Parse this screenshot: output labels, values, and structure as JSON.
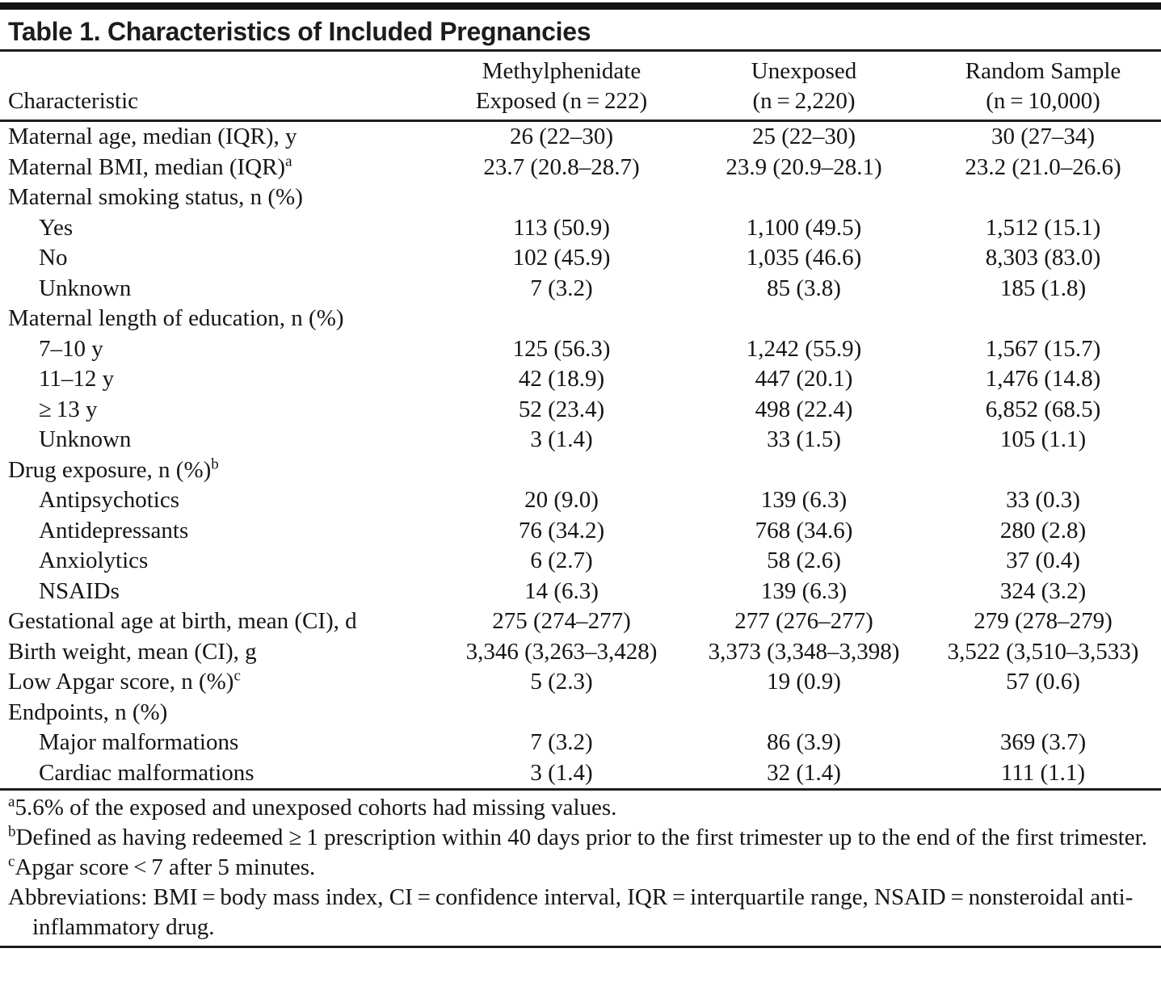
{
  "title": "Table 1. Characteristics of Included Pregnancies",
  "table": {
    "header": {
      "characteristic": "Characteristic",
      "exposed_line1": "Methylphenidate",
      "exposed_line2": "Exposed (n = 222)",
      "unexposed_line1": "Unexposed",
      "unexposed_line2": "(n = 2,220)",
      "random_line1": "Random Sample",
      "random_line2": "(n = 10,000)"
    },
    "rows": [
      {
        "label": "Maternal age, median (IQR), y",
        "sup": "",
        "indent": false,
        "values": [
          "26 (22–30)",
          "25 (22–30)",
          "30 (27–34)"
        ]
      },
      {
        "label": "Maternal BMI, median (IQR)",
        "sup": "a",
        "indent": false,
        "values": [
          "23.7 (20.8–28.7)",
          "23.9 (20.9–28.1)",
          "23.2 (21.0–26.6)"
        ]
      },
      {
        "label": "Maternal smoking status, n (%)",
        "sup": "",
        "indent": false,
        "values": [
          "",
          "",
          ""
        ]
      },
      {
        "label": "Yes",
        "sup": "",
        "indent": true,
        "values": [
          "113 (50.9)",
          "1,100 (49.5)",
          "1,512 (15.1)"
        ]
      },
      {
        "label": "No",
        "sup": "",
        "indent": true,
        "values": [
          "102 (45.9)",
          "1,035 (46.6)",
          "8,303 (83.0)"
        ]
      },
      {
        "label": "Unknown",
        "sup": "",
        "indent": true,
        "values": [
          "7 (3.2)",
          "85 (3.8)",
          "185 (1.8)"
        ]
      },
      {
        "label": "Maternal length of education, n (%)",
        "sup": "",
        "indent": false,
        "values": [
          "",
          "",
          ""
        ]
      },
      {
        "label": "7–10 y",
        "sup": "",
        "indent": true,
        "values": [
          "125 (56.3)",
          "1,242 (55.9)",
          "1,567 (15.7)"
        ]
      },
      {
        "label": "11–12 y",
        "sup": "",
        "indent": true,
        "values": [
          "42 (18.9)",
          "447 (20.1)",
          "1,476 (14.8)"
        ]
      },
      {
        "label": "≥ 13 y",
        "sup": "",
        "indent": true,
        "values": [
          "52 (23.4)",
          "498 (22.4)",
          "6,852 (68.5)"
        ]
      },
      {
        "label": "Unknown",
        "sup": "",
        "indent": true,
        "values": [
          "3 (1.4)",
          "33 (1.5)",
          "105 (1.1)"
        ]
      },
      {
        "label": "Drug exposure, n (%)",
        "sup": "b",
        "indent": false,
        "values": [
          "",
          "",
          ""
        ]
      },
      {
        "label": "Antipsychotics",
        "sup": "",
        "indent": true,
        "values": [
          "20 (9.0)",
          "139 (6.3)",
          "33 (0.3)"
        ]
      },
      {
        "label": "Antidepressants",
        "sup": "",
        "indent": true,
        "values": [
          "76 (34.2)",
          "768 (34.6)",
          "280 (2.8)"
        ]
      },
      {
        "label": "Anxiolytics",
        "sup": "",
        "indent": true,
        "values": [
          "6 (2.7)",
          "58 (2.6)",
          "37 (0.4)"
        ]
      },
      {
        "label": "NSAIDs",
        "sup": "",
        "indent": true,
        "values": [
          "14 (6.3)",
          "139 (6.3)",
          "324 (3.2)"
        ]
      },
      {
        "label": "Gestational age at birth, mean (CI), d",
        "sup": "",
        "indent": false,
        "values": [
          "275 (274–277)",
          "277 (276–277)",
          "279 (278–279)"
        ]
      },
      {
        "label": "Birth weight, mean (CI), g",
        "sup": "",
        "indent": false,
        "values": [
          "3,346 (3,263–3,428)",
          "3,373 (3,348–3,398)",
          "3,522 (3,510–3,533)"
        ]
      },
      {
        "label": "Low Apgar score, n (%)",
        "sup": "c",
        "indent": false,
        "values": [
          "5 (2.3)",
          "19 (0.9)",
          "57 (0.6)"
        ]
      },
      {
        "label": "Endpoints, n (%)",
        "sup": "",
        "indent": false,
        "values": [
          "",
          "",
          ""
        ]
      },
      {
        "label": "Major malformations",
        "sup": "",
        "indent": true,
        "values": [
          "7 (3.2)",
          "86 (3.9)",
          "369 (3.7)"
        ]
      },
      {
        "label": "Cardiac malformations",
        "sup": "",
        "indent": true,
        "values": [
          "3 (1.4)",
          "32 (1.4)",
          "111 (1.1)"
        ]
      }
    ]
  },
  "footnotes": [
    {
      "marker": "a",
      "text": "5.6% of the exposed and unexposed cohorts had missing values."
    },
    {
      "marker": "b",
      "text": "Defined as having redeemed ≥ 1 prescription within 40 days prior to the first trimester up to the end of the first trimester."
    },
    {
      "marker": "c",
      "text": "Apgar score < 7 after 5 minutes."
    },
    {
      "marker": "",
      "text": "Abbreviations: BMI = body mass index, CI = confidence interval, IQR = interquartile range, NSAID = nonsteroidal anti-inflammatory drug."
    }
  ]
}
